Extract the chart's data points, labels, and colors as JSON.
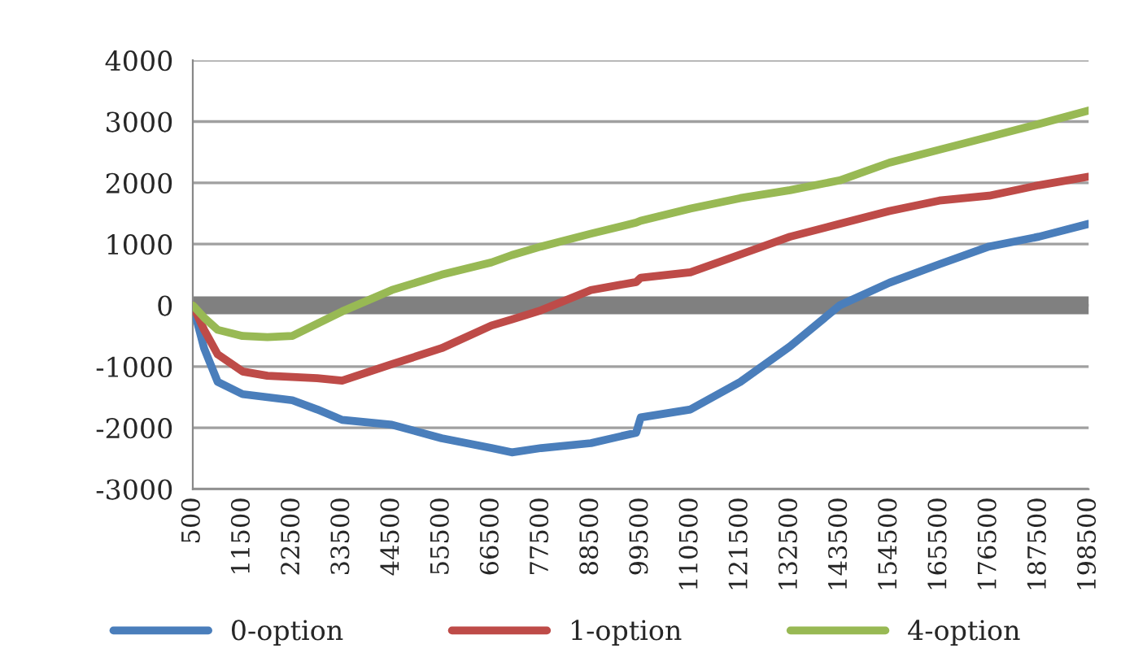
{
  "chart_data": {
    "type": "line",
    "x": [
      500,
      3000,
      6000,
      11500,
      17000,
      22500,
      28000,
      33500,
      44500,
      55500,
      66500,
      71000,
      77500,
      88500,
      98500,
      99500,
      110500,
      121500,
      132500,
      143500,
      154500,
      165500,
      176500,
      187500,
      198500
    ],
    "series": [
      {
        "name": "0-option",
        "color": "#4a7ebb",
        "values": [
          0,
          -700,
          -1250,
          -1450,
          -1500,
          -1550,
          -1700,
          -1870,
          -1950,
          -2170,
          -2330,
          -2400,
          -2330,
          -2250,
          -2080,
          -1830,
          -1700,
          -1250,
          -670,
          0,
          370,
          670,
          960,
          1120,
          1330
        ]
      },
      {
        "name": "1-option",
        "color": "#be4b48",
        "values": [
          0,
          -400,
          -800,
          -1080,
          -1150,
          -1170,
          -1190,
          -1230,
          -960,
          -700,
          -330,
          -230,
          -80,
          250,
          380,
          450,
          540,
          830,
          1120,
          1330,
          1540,
          1710,
          1790,
          1960,
          2100
        ]
      },
      {
        "name": "4-option",
        "color": "#98b954",
        "values": [
          0,
          -200,
          -400,
          -500,
          -520,
          -500,
          -300,
          -100,
          250,
          500,
          700,
          820,
          960,
          1170,
          1350,
          1380,
          1580,
          1750,
          1880,
          2040,
          2330,
          2540,
          2750,
          2960,
          3180
        ]
      }
    ],
    "xlim": [
      500,
      198500
    ],
    "xticks": [
      500,
      11500,
      22500,
      33500,
      44500,
      55500,
      66500,
      77500,
      88500,
      99500,
      110500,
      121500,
      132500,
      143500,
      154500,
      165500,
      176500,
      187500,
      198500
    ],
    "ylim": [
      -3000,
      4000
    ],
    "yticks": [
      -3000,
      -2000,
      -1000,
      0,
      1000,
      2000,
      3000,
      4000
    ],
    "ref_lines": [
      {
        "axis": "y",
        "value": 0,
        "color": "#808080"
      }
    ],
    "grid": "y",
    "legend": "bottom",
    "marker": "none",
    "line_style": "solid"
  }
}
